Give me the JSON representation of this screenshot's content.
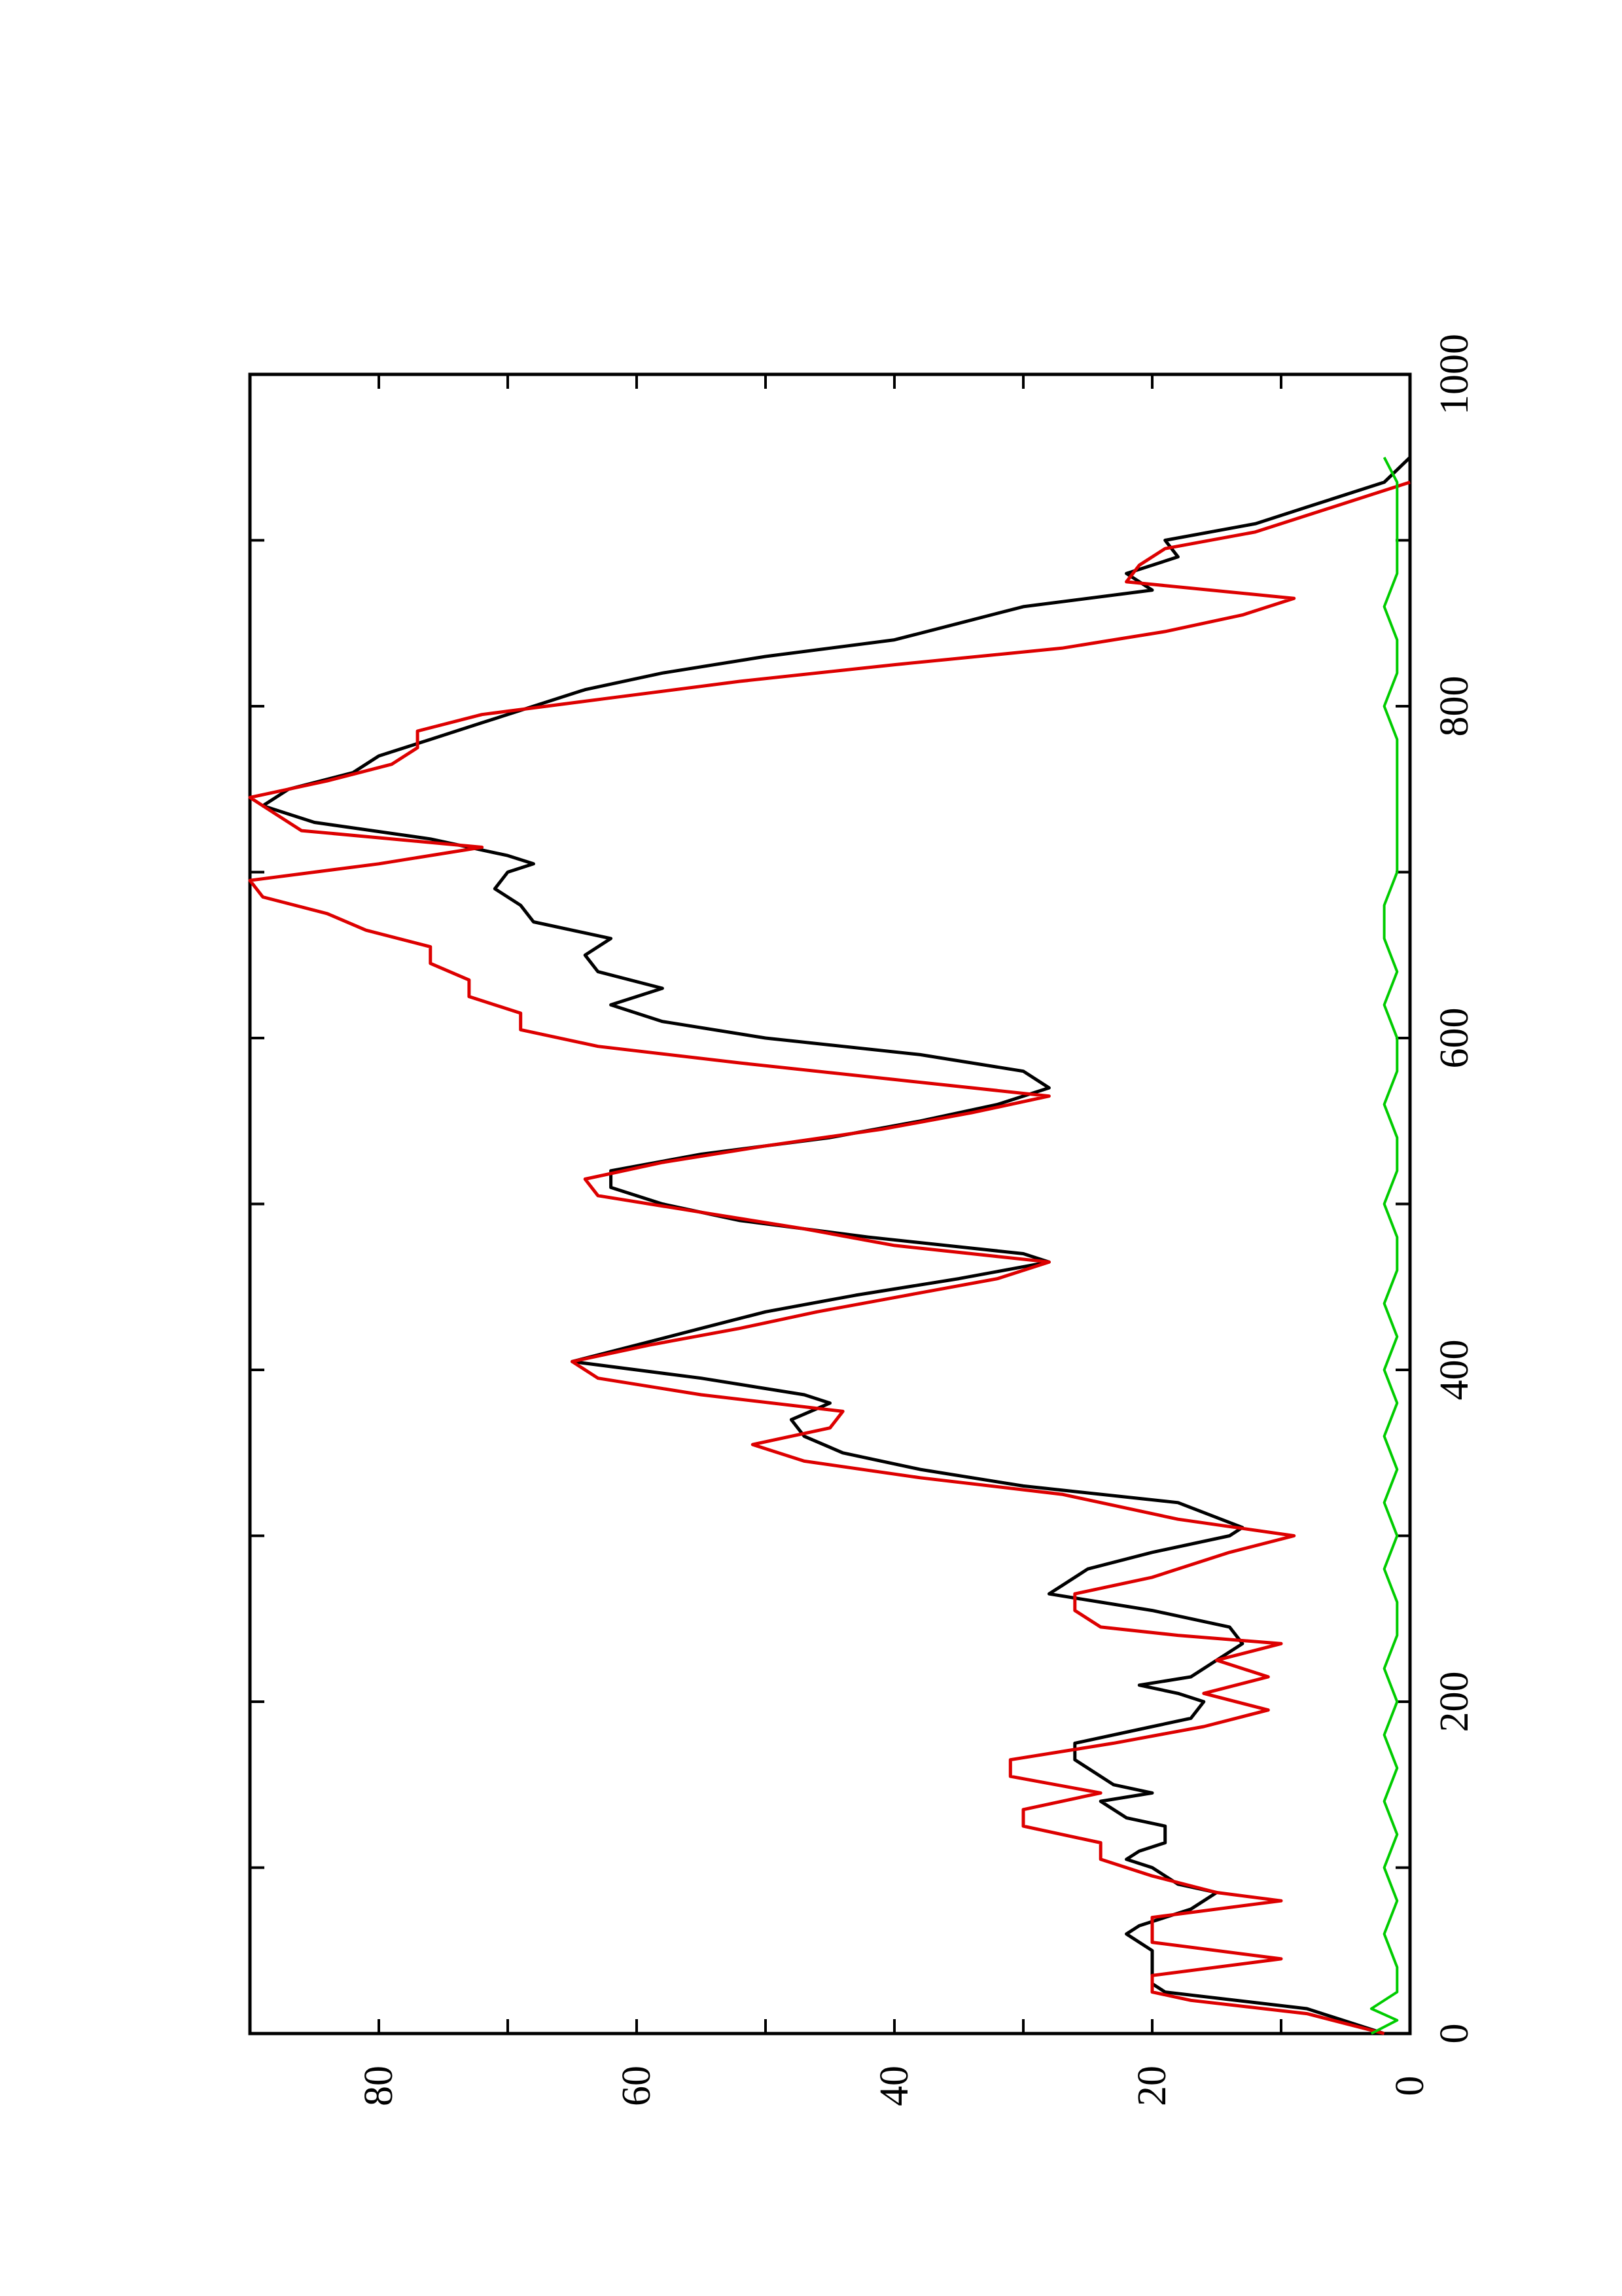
{
  "chart_data": {
    "type": "line",
    "rotated": "90deg-clockwise",
    "title": "",
    "xlabel": "",
    "ylabel": "",
    "xlim": [
      0,
      1000
    ],
    "ylim": [
      0,
      90
    ],
    "x_ticks": [
      "0",
      "200",
      "400",
      "600",
      "800",
      "1000"
    ],
    "y_ticks": [
      "0",
      "20",
      "40",
      "60",
      "80"
    ],
    "grid": false,
    "series": [
      {
        "color": "#000000",
        "points": [
          [
            0,
            2
          ],
          [
            15,
            8
          ],
          [
            25,
            19
          ],
          [
            30,
            20
          ],
          [
            50,
            20
          ],
          [
            60,
            22
          ],
          [
            65,
            21
          ],
          [
            75,
            17
          ],
          [
            85,
            15
          ],
          [
            90,
            18
          ],
          [
            100,
            20
          ],
          [
            105,
            22
          ],
          [
            110,
            21
          ],
          [
            115,
            19
          ],
          [
            125,
            19
          ],
          [
            130,
            22
          ],
          [
            140,
            24
          ],
          [
            145,
            20
          ],
          [
            150,
            23
          ],
          [
            160,
            25
          ],
          [
            165,
            26
          ],
          [
            175,
            26
          ],
          [
            185,
            20
          ],
          [
            190,
            17
          ],
          [
            200,
            16
          ],
          [
            205,
            18
          ],
          [
            210,
            21
          ],
          [
            215,
            17
          ],
          [
            225,
            15
          ],
          [
            235,
            13
          ],
          [
            245,
            14
          ],
          [
            255,
            20
          ],
          [
            260,
            24
          ],
          [
            265,
            28
          ],
          [
            270,
            27
          ],
          [
            280,
            25
          ],
          [
            290,
            20
          ],
          [
            300,
            14
          ],
          [
            305,
            13
          ],
          [
            320,
            18
          ],
          [
            330,
            30
          ],
          [
            340,
            38
          ],
          [
            350,
            44
          ],
          [
            360,
            47
          ],
          [
            370,
            48
          ],
          [
            380,
            45
          ],
          [
            385,
            47
          ],
          [
            395,
            55
          ],
          [
            405,
            65
          ],
          [
            415,
            60
          ],
          [
            425,
            55
          ],
          [
            435,
            50
          ],
          [
            445,
            43
          ],
          [
            455,
            35
          ],
          [
            465,
            28
          ],
          [
            470,
            30
          ],
          [
            480,
            42
          ],
          [
            490,
            52
          ],
          [
            500,
            58
          ],
          [
            510,
            62
          ],
          [
            520,
            62
          ],
          [
            530,
            55
          ],
          [
            540,
            45
          ],
          [
            550,
            38
          ],
          [
            560,
            32
          ],
          [
            565,
            30
          ],
          [
            570,
            28
          ],
          [
            580,
            30
          ],
          [
            590,
            38
          ],
          [
            600,
            50
          ],
          [
            610,
            58
          ],
          [
            620,
            62
          ],
          [
            630,
            58
          ],
          [
            640,
            63
          ],
          [
            650,
            64
          ],
          [
            660,
            62
          ],
          [
            670,
            68
          ],
          [
            680,
            69
          ],
          [
            690,
            71
          ],
          [
            700,
            70
          ],
          [
            705,
            68
          ],
          [
            710,
            70
          ],
          [
            720,
            76
          ],
          [
            730,
            85
          ],
          [
            740,
            89
          ],
          [
            750,
            87
          ],
          [
            760,
            82
          ],
          [
            770,
            80
          ],
          [
            780,
            76
          ],
          [
            790,
            72
          ],
          [
            800,
            68
          ],
          [
            810,
            64
          ],
          [
            820,
            58
          ],
          [
            830,
            50
          ],
          [
            840,
            40
          ],
          [
            850,
            35
          ],
          [
            860,
            30
          ],
          [
            870,
            20
          ],
          [
            880,
            22
          ],
          [
            890,
            18
          ],
          [
            900,
            19
          ],
          [
            910,
            12
          ],
          [
            920,
            8
          ],
          [
            935,
            2
          ],
          [
            950,
            0
          ]
        ]
      },
      {
        "color": "#dd0000",
        "points": [
          [
            0,
            2
          ],
          [
            12,
            8
          ],
          [
            20,
            17
          ],
          [
            25,
            20
          ],
          [
            35,
            20
          ],
          [
            45,
            10
          ],
          [
            55,
            20
          ],
          [
            70,
            20
          ],
          [
            80,
            10
          ],
          [
            85,
            15
          ],
          [
            95,
            20
          ],
          [
            105,
            24
          ],
          [
            115,
            24
          ],
          [
            125,
            30
          ],
          [
            135,
            30
          ],
          [
            145,
            24
          ],
          [
            155,
            31
          ],
          [
            165,
            31
          ],
          [
            175,
            23
          ],
          [
            185,
            16
          ],
          [
            195,
            11
          ],
          [
            205,
            16
          ],
          [
            215,
            11
          ],
          [
            225,
            15
          ],
          [
            235,
            10
          ],
          [
            240,
            18
          ],
          [
            245,
            24
          ],
          [
            255,
            26
          ],
          [
            265,
            26
          ],
          [
            275,
            20
          ],
          [
            290,
            14
          ],
          [
            300,
            9
          ],
          [
            310,
            18
          ],
          [
            325,
            27
          ],
          [
            335,
            38
          ],
          [
            345,
            47
          ],
          [
            355,
            51
          ],
          [
            365,
            45
          ],
          [
            375,
            44
          ],
          [
            385,
            55
          ],
          [
            395,
            63
          ],
          [
            405,
            65
          ],
          [
            415,
            59
          ],
          [
            425,
            52
          ],
          [
            435,
            46
          ],
          [
            445,
            39
          ],
          [
            455,
            32
          ],
          [
            465,
            28
          ],
          [
            475,
            40
          ],
          [
            485,
            47
          ],
          [
            495,
            55
          ],
          [
            505,
            63
          ],
          [
            515,
            64
          ],
          [
            525,
            58
          ],
          [
            535,
            50
          ],
          [
            545,
            41
          ],
          [
            555,
            34
          ],
          [
            565,
            28
          ],
          [
            575,
            40
          ],
          [
            585,
            52
          ],
          [
            595,
            63
          ],
          [
            605,
            69
          ],
          [
            615,
            69
          ],
          [
            625,
            73
          ],
          [
            635,
            73
          ],
          [
            645,
            76
          ],
          [
            655,
            76
          ],
          [
            665,
            81
          ],
          [
            675,
            84
          ],
          [
            685,
            89
          ],
          [
            695,
            90
          ],
          [
            705,
            80
          ],
          [
            715,
            72
          ],
          [
            725,
            86
          ],
          [
            735,
            88
          ],
          [
            745,
            90
          ],
          [
            755,
            84
          ],
          [
            765,
            79
          ],
          [
            775,
            77
          ],
          [
            785,
            77
          ],
          [
            795,
            72
          ],
          [
            805,
            62
          ],
          [
            815,
            52
          ],
          [
            825,
            40
          ],
          [
            835,
            27
          ],
          [
            845,
            19
          ],
          [
            855,
            13
          ],
          [
            865,
            9
          ],
          [
            875,
            22
          ],
          [
            885,
            21
          ],
          [
            895,
            19
          ],
          [
            905,
            12
          ],
          [
            925,
            4
          ],
          [
            935,
            0
          ]
        ]
      },
      {
        "color": "#00cc00",
        "points": [
          [
            0,
            3
          ],
          [
            8,
            1
          ],
          [
            15,
            3
          ],
          [
            25,
            1
          ],
          [
            40,
            1
          ],
          [
            60,
            2
          ],
          [
            80,
            1
          ],
          [
            100,
            2
          ],
          [
            120,
            1
          ],
          [
            140,
            2
          ],
          [
            160,
            1
          ],
          [
            180,
            2
          ],
          [
            200,
            1
          ],
          [
            220,
            2
          ],
          [
            240,
            1
          ],
          [
            260,
            1
          ],
          [
            280,
            2
          ],
          [
            300,
            1
          ],
          [
            320,
            2
          ],
          [
            340,
            1
          ],
          [
            360,
            2
          ],
          [
            380,
            1
          ],
          [
            400,
            2
          ],
          [
            420,
            1
          ],
          [
            440,
            2
          ],
          [
            460,
            1
          ],
          [
            480,
            1
          ],
          [
            500,
            2
          ],
          [
            520,
            1
          ],
          [
            540,
            1
          ],
          [
            560,
            2
          ],
          [
            580,
            1
          ],
          [
            600,
            1
          ],
          [
            620,
            2
          ],
          [
            640,
            1
          ],
          [
            660,
            2
          ],
          [
            680,
            2
          ],
          [
            700,
            1
          ],
          [
            720,
            1
          ],
          [
            740,
            1
          ],
          [
            760,
            1
          ],
          [
            780,
            1
          ],
          [
            800,
            2
          ],
          [
            820,
            1
          ],
          [
            840,
            1
          ],
          [
            860,
            2
          ],
          [
            880,
            1
          ],
          [
            900,
            1
          ],
          [
            920,
            1
          ],
          [
            935,
            1
          ],
          [
            950,
            2
          ]
        ]
      }
    ]
  }
}
